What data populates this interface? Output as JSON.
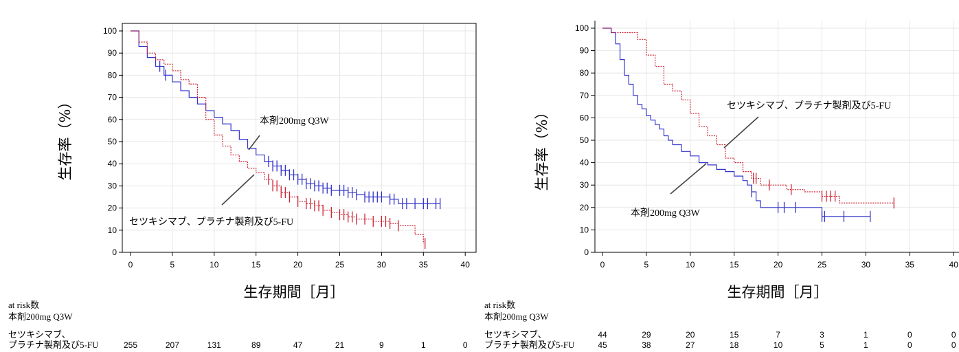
{
  "charts": [
    {
      "chart_data": {
        "type": "line",
        "subtype": "kaplan-meier",
        "xlabel": "生存期間［月］",
        "ylabel": "生存率（%）",
        "xlim": [
          0,
          40
        ],
        "ylim": [
          0,
          100
        ],
        "xticks": [
          0,
          5,
          10,
          15,
          20,
          25,
          30,
          35,
          40
        ],
        "yticks": [
          0,
          10,
          20,
          30,
          40,
          50,
          60,
          70,
          80,
          90,
          100
        ],
        "grid": true,
        "series": [
          {
            "name": "本剤200mg Q3W",
            "color": "#3333cc",
            "style": "solid",
            "x": [
              0,
              1,
              2,
              3,
              4,
              5,
              6,
              7,
              8,
              9,
              10,
              11,
              12,
              13,
              14,
              15,
              16,
              17,
              18,
              19,
              20,
              21,
              22,
              23,
              24,
              25,
              26,
              27,
              28,
              29,
              30,
              31,
              32,
              33,
              34,
              35,
              36,
              37
            ],
            "y": [
              100,
              93,
              88,
              84,
              80,
              77,
              73,
              70,
              67,
              64,
              61,
              58,
              55,
              51,
              47,
              44,
              41,
              39,
              37,
              35,
              33,
              31,
              30,
              29,
              28,
              28,
              27,
              26,
              25,
              25,
              25,
              24,
              22,
              22,
              22,
              22,
              22,
              22
            ],
            "censor_x": [
              3.5,
              4.2,
              16.5,
              17,
              17.5,
              18,
              18.5,
              19,
              19.5,
              20,
              20.5,
              21,
              21.5,
              22,
              22.5,
              23,
              23.5,
              24,
              25,
              25.5,
              26,
              26.5,
              27,
              28,
              28.5,
              29,
              29.5,
              30,
              31,
              31.5,
              32.5,
              33,
              34,
              35,
              35.5,
              36.5,
              37
            ]
          },
          {
            "name": "セツキシマブ、プラチナ製剤及び5-FU",
            "color": "#cc2233",
            "style": "dotted",
            "x": [
              0,
              1,
              2,
              3,
              4,
              5,
              6,
              7,
              8,
              9,
              10,
              11,
              12,
              13,
              14,
              15,
              16,
              17,
              18,
              19,
              20,
              21,
              22,
              23,
              24,
              25,
              26,
              27,
              28,
              29,
              30,
              31,
              32,
              33,
              34,
              35
            ],
            "y": [
              100,
              95,
              90,
              87,
              85,
              82,
              78,
              76,
              70,
              60,
              53,
              48,
              44,
              41,
              38,
              36,
              33,
              30,
              27,
              25,
              23,
              22,
              21,
              19,
              18,
              17,
              16,
              15,
              15,
              14,
              14,
              13,
              12,
              12,
              8,
              4
            ],
            "censor_x": [
              16.5,
              17,
              17.5,
              18,
              18.5,
              19,
              20,
              21,
              21.5,
              22,
              22.5,
              23,
              24,
              25,
              25.5,
              26,
              26.5,
              27,
              28,
              29,
              30,
              30.5,
              31,
              32,
              35.2
            ]
          }
        ],
        "annotations": [
          "本剤200mg Q3W",
          "セツキシマブ、プラチナ製剤及び5-FU"
        ]
      },
      "risk_table": {
        "header": "at risk数",
        "rows": [
          {
            "label": "本剤200mg Q3W",
            "values": []
          },
          {
            "label_line1": "セツキシマブ、",
            "label_line2": "プラチナ製剤及び5-FU",
            "values": [
              "255",
              "207",
              "131",
              "89",
              "47",
              "21",
              "9",
              "1",
              "0"
            ]
          }
        ]
      }
    },
    {
      "chart_data": {
        "type": "line",
        "subtype": "kaplan-meier",
        "xlabel": "生存期間［月］",
        "ylabel": "生存率（%）",
        "xlim": [
          0,
          40
        ],
        "ylim": [
          0,
          100
        ],
        "xticks": [
          0,
          5,
          10,
          15,
          20,
          25,
          30,
          35,
          40
        ],
        "yticks": [
          0,
          10,
          20,
          30,
          40,
          50,
          60,
          70,
          80,
          90,
          100
        ],
        "grid": true,
        "series": [
          {
            "name": "本剤200mg Q3W",
            "color": "#3333cc",
            "style": "solid",
            "x": [
              0,
              1,
              1.5,
              2,
              2.5,
              3,
              3.5,
              4,
              4.5,
              5,
              5.5,
              6,
              6.5,
              7,
              7.5,
              8,
              9,
              10,
              11,
              12,
              13,
              14,
              15,
              16,
              16.5,
              17,
              17.5,
              18,
              20,
              22,
              25,
              27,
              30.5
            ],
            "y": [
              100,
              98,
              93,
              86,
              79,
              75,
              70,
              66,
              64,
              61,
              59,
              57,
              55,
              52,
              50,
              48,
              45,
              43,
              40,
              39,
              37,
              36,
              34,
              32,
              30,
              27,
              23,
              20,
              20,
              20,
              16,
              16,
              16
            ],
            "censor_x": [
              17,
              20,
              20.7,
              22,
              25,
              25.3,
              27.5,
              30.5
            ]
          },
          {
            "name": "セツキシマブ、プラチナ製剤及び5-FU",
            "color": "#cc2233",
            "style": "dotted",
            "x": [
              0,
              1,
              2,
              3,
              4,
              5,
              6,
              7,
              8,
              9,
              10,
              11,
              12,
              13,
              14,
              15,
              16,
              17,
              18,
              19,
              20,
              21,
              22,
              23,
              24,
              25,
              26,
              27,
              28,
              29,
              30,
              31,
              32,
              33.2
            ],
            "y": [
              100,
              98,
              98,
              98,
              95,
              88,
              83,
              75,
              72,
              68,
              62,
              56,
              52,
              48,
              42,
              40,
              36,
              33,
              30,
              30,
              30,
              28,
              28,
              27,
              27,
              25,
              25,
              22,
              22,
              22,
              22,
              22,
              22,
              22
            ],
            "censor_x": [
              17.2,
              17.5,
              19,
              21.5,
              25,
              25.5,
              26,
              26.5,
              33.2
            ]
          }
        ],
        "annotations": [
          "セツキシマブ、プラチナ製剤及び5-FU",
          "本剤200mg Q3W"
        ]
      },
      "risk_table": {
        "header": "at risk数",
        "rows": [
          {
            "label": "本剤200mg Q3W",
            "values": []
          },
          {
            "label_line1": "セツキシマブ、",
            "label_line2": "プラチナ製剤及び5-FU",
            "values_top": [
              "44",
              "29",
              "20",
              "15",
              "7",
              "3",
              "1",
              "0",
              "0"
            ],
            "values": [
              "45",
              "38",
              "27",
              "18",
              "10",
              "5",
              "1",
              "0",
              "0"
            ]
          }
        ]
      }
    }
  ]
}
